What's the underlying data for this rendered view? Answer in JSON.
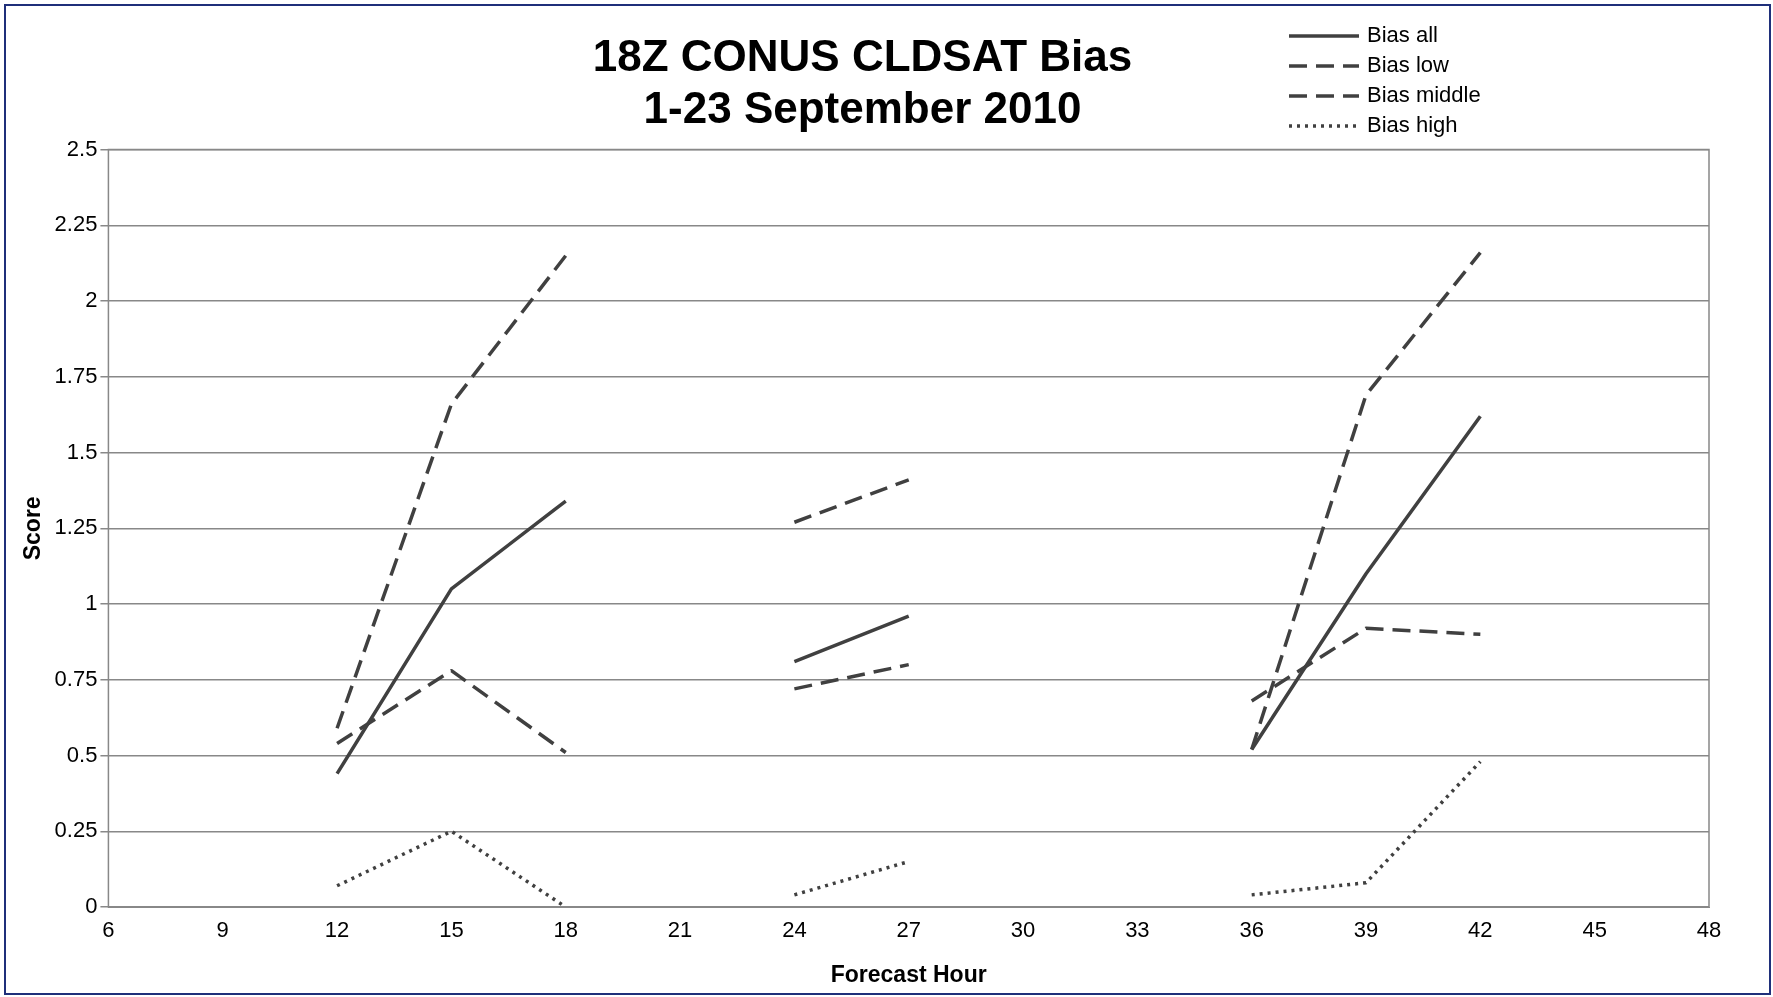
{
  "chart_data": {
    "type": "line",
    "title": "18Z CONUS CLDSAT Bias\n1-23 September 2010",
    "xlabel": "Forecast Hour",
    "ylabel": "Score",
    "x": [
      12,
      15,
      18,
      21,
      24,
      27,
      30,
      33,
      36,
      39,
      42
    ],
    "xlim": [
      6,
      48
    ],
    "xticks": [
      6,
      9,
      12,
      15,
      18,
      21,
      24,
      27,
      30,
      33,
      36,
      39,
      42,
      45,
      48
    ],
    "ylim": [
      0,
      2.5
    ],
    "yticks": [
      0,
      0.25,
      0.5,
      0.75,
      1,
      1.25,
      1.5,
      1.75,
      2,
      2.25,
      2.5
    ],
    "grid": "y",
    "legend": "top right",
    "marker": "none",
    "series": [
      {
        "name": "Bias all",
        "color": "#404040",
        "line_style": "solid",
        "values": [
          0.44,
          1.05,
          1.34,
          null,
          0.81,
          0.96,
          null,
          null,
          0.52,
          1.1,
          1.62
        ]
      },
      {
        "name": "Bias low",
        "color": "#404040",
        "line_style": "dashed",
        "values": [
          0.59,
          1.66,
          2.15,
          null,
          1.27,
          1.41,
          null,
          null,
          0.52,
          1.69,
          2.16
        ]
      },
      {
        "name": "Bias middle",
        "color": "#404040",
        "line_style": "dashed",
        "values": [
          0.54,
          0.78,
          0.51,
          null,
          0.72,
          0.8,
          null,
          null,
          0.68,
          0.92,
          0.9
        ]
      },
      {
        "name": "Bias high",
        "color": "#404040",
        "line_style": "dotted",
        "values": [
          0.07,
          0.25,
          0,
          null,
          0.04,
          0.15,
          null,
          null,
          0.04,
          0.08,
          0.48
        ]
      }
    ]
  }
}
